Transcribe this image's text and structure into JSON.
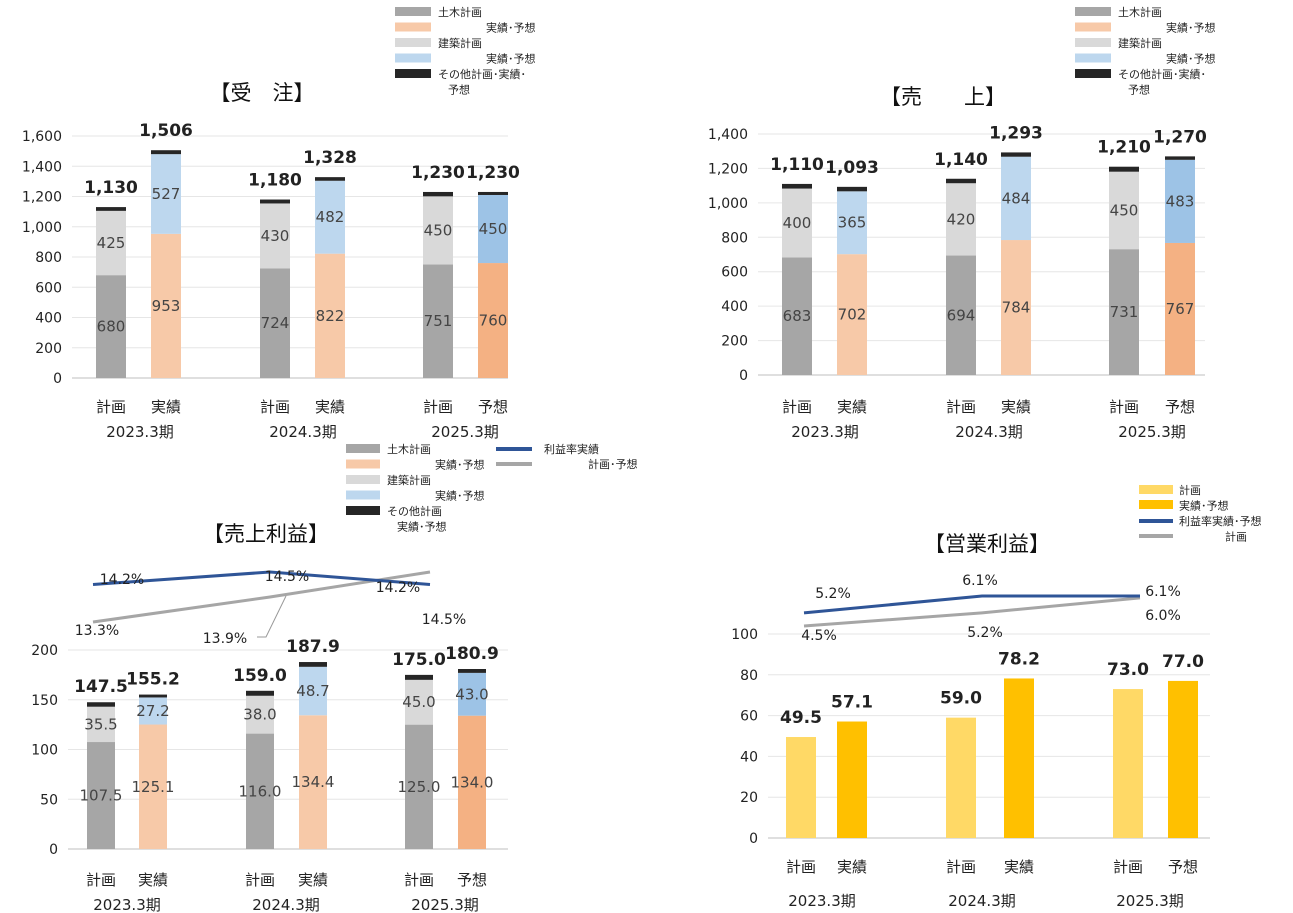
{
  "colors": {
    "civil_plan": "#A6A6A6",
    "civil_actual": "#F7C9A8",
    "civil_forecast": "#F4B183",
    "building_plan": "#D9D9D9",
    "building_actual": "#BDD7EE",
    "building_forecast": "#9DC3E6",
    "other": "#262626",
    "rate_actual": "#2F5597",
    "rate_plan": "#A6A6A6",
    "op_plan": "#FFD966",
    "op_actual": "#FFC000"
  },
  "chart_data": [
    {
      "id": "orders",
      "type": "bar",
      "stacked": true,
      "title": "【受　注】",
      "ylim": [
        0,
        1600
      ],
      "yticks": [
        "0",
        "200",
        "400",
        "600",
        "800",
        "1,000",
        "1,200",
        "1,400",
        "1,600"
      ],
      "grid": true,
      "legend_position": "top-right",
      "legend": [
        "土木計画",
        "実績･予想",
        "建築計画",
        "実績･予想",
        "その他計画･実績･",
        "予想"
      ],
      "categories": [
        "計画",
        "実績",
        "計画",
        "実績",
        "計画",
        "予想"
      ],
      "periods": [
        "2023.3期",
        "2024.3期",
        "2025.3期"
      ],
      "series": [
        {
          "values": [
            680,
            953,
            724,
            822,
            751,
            760
          ],
          "labels": [
            "680",
            "953",
            "724",
            "822",
            "751",
            "760"
          ]
        },
        {
          "values": [
            425,
            527,
            430,
            482,
            450,
            450
          ],
          "labels": [
            "425",
            "527",
            "430",
            "482",
            "450",
            "450"
          ]
        },
        {
          "values": [
            25,
            26,
            26,
            24,
            29,
            20
          ]
        }
      ],
      "totals": [
        "1,130",
        "1,506",
        "1,180",
        "1,328",
        "1,230",
        "1,230"
      ]
    },
    {
      "id": "sales",
      "type": "bar",
      "stacked": true,
      "title": "【売　　上】",
      "ylim": [
        0,
        1400
      ],
      "yticks": [
        "0",
        "200",
        "400",
        "600",
        "800",
        "1,000",
        "1,200",
        "1,400"
      ],
      "grid": true,
      "legend_position": "top-right",
      "legend": [
        "土木計画",
        "実績･予想",
        "建築計画",
        "実績･予想",
        "その他計画･実績･",
        "予想"
      ],
      "categories": [
        "計画",
        "実績",
        "計画",
        "実績",
        "計画",
        "予想"
      ],
      "periods": [
        "2023.3期",
        "2024.3期",
        "2025.3期"
      ],
      "series": [
        {
          "values": [
            683,
            702,
            694,
            784,
            731,
            767
          ],
          "labels": [
            "683",
            "702",
            "694",
            "784",
            "731",
            "767"
          ]
        },
        {
          "values": [
            400,
            365,
            420,
            484,
            450,
            483
          ],
          "labels": [
            "400",
            "365",
            "420",
            "484",
            "450",
            "483"
          ]
        },
        {
          "values": [
            27,
            26,
            26,
            25,
            29,
            20
          ]
        }
      ],
      "totals": [
        "1,110",
        "1,093",
        "1,140",
        "1,293",
        "1,210",
        "1,270"
      ]
    },
    {
      "id": "gross_profit",
      "type": "bar",
      "stacked": true,
      "title": "【売上利益】",
      "ylim": [
        0,
        200
      ],
      "yticks": [
        "0",
        "50",
        "100",
        "150",
        "200"
      ],
      "grid": true,
      "legend_position": "top",
      "legend": [
        "土木計画",
        "実績･予想",
        "建築計画",
        "実績･予想",
        "その他計画",
        "実績･予想"
      ],
      "line_legend": [
        "利益率実績",
        "計画･予想"
      ],
      "categories": [
        "計画",
        "実績",
        "計画",
        "実績",
        "計画",
        "予想"
      ],
      "periods": [
        "2023.3期",
        "2024.3期",
        "2025.3期"
      ],
      "series": [
        {
          "values": [
            107.5,
            125.1,
            116.0,
            134.4,
            125.0,
            134.0
          ],
          "labels": [
            "107.5",
            "125.1",
            "116.0",
            "134.4",
            "125.0",
            "134.0"
          ]
        },
        {
          "values": [
            35.5,
            27.2,
            38.0,
            48.7,
            45.0,
            43.0
          ],
          "labels": [
            "35.5",
            "27.2",
            "38.0",
            "48.7",
            "45.0",
            "43.0"
          ]
        },
        {
          "values": [
            4.5,
            2.9,
            5.0,
            4.8,
            5.0,
            3.9
          ]
        }
      ],
      "totals": [
        "147.5",
        "155.2",
        "159.0",
        "187.9",
        "175.0",
        "180.9"
      ],
      "rate_actual": [
        14.2,
        14.5,
        14.2
      ],
      "rate_actual_labels": [
        "14.2%",
        "14.5%",
        "14.2%"
      ],
      "rate_plan": [
        13.3,
        13.9,
        14.5
      ],
      "rate_plan_labels": [
        "13.3%",
        "13.9%",
        "14.5%"
      ]
    },
    {
      "id": "operating_profit",
      "type": "bar",
      "title": "【営業利益】",
      "ylim": [
        0,
        100
      ],
      "yticks": [
        "0",
        "20",
        "40",
        "60",
        "80",
        "100"
      ],
      "grid": true,
      "legend_position": "top-right",
      "legend": [
        "計画",
        "実績･予想",
        "利益率実績･予想",
        "計画"
      ],
      "categories": [
        "計画",
        "実績",
        "計画",
        "実績",
        "計画",
        "予想"
      ],
      "periods": [
        "2023.3期",
        "2024.3期",
        "2025.3期"
      ],
      "values": [
        49.5,
        57.1,
        59.0,
        78.2,
        73.0,
        77.0
      ],
      "totals": [
        "49.5",
        "57.1",
        "59.0",
        "78.2",
        "73.0",
        "77.0"
      ],
      "rate_actual": [
        5.2,
        6.1,
        6.1
      ],
      "rate_actual_labels": [
        "5.2%",
        "6.1%",
        "6.1%"
      ],
      "rate_plan": [
        4.5,
        5.2,
        6.0
      ],
      "rate_plan_labels": [
        "4.5%",
        "5.2%",
        "6.0%"
      ]
    }
  ]
}
